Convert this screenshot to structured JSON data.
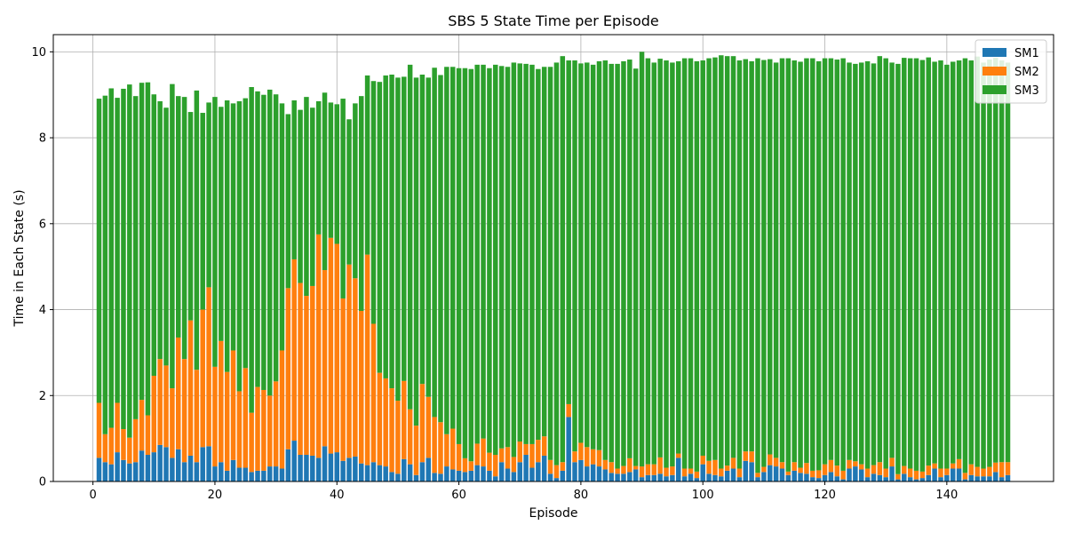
{
  "chart_data": {
    "type": "bar",
    "stacked": true,
    "title": "SBS 5 State Time per Episode",
    "xlabel": "Episode",
    "ylabel": "Time in Each State (s)",
    "xlim": [
      -6.5,
      157.5
    ],
    "ylim": [
      0,
      10.4
    ],
    "xticks": [
      0,
      20,
      40,
      60,
      80,
      100,
      120,
      140
    ],
    "yticks": [
      0,
      2,
      4,
      6,
      8,
      10
    ],
    "grid": true,
    "legend": "top-right",
    "x": [
      1,
      2,
      3,
      4,
      5,
      6,
      7,
      8,
      9,
      10,
      11,
      12,
      13,
      14,
      15,
      16,
      17,
      18,
      19,
      20,
      21,
      22,
      23,
      24,
      25,
      26,
      27,
      28,
      29,
      30,
      31,
      32,
      33,
      34,
      35,
      36,
      37,
      38,
      39,
      40,
      41,
      42,
      43,
      44,
      45,
      46,
      47,
      48,
      49,
      50,
      51,
      52,
      53,
      54,
      55,
      56,
      57,
      58,
      59,
      60,
      61,
      62,
      63,
      64,
      65,
      66,
      67,
      68,
      69,
      70,
      71,
      72,
      73,
      74,
      75,
      76,
      77,
      78,
      79,
      80,
      81,
      82,
      83,
      84,
      85,
      86,
      87,
      88,
      89,
      90,
      91,
      92,
      93,
      94,
      95,
      96,
      97,
      98,
      99,
      100,
      101,
      102,
      103,
      104,
      105,
      106,
      107,
      108,
      109,
      110,
      111,
      112,
      113,
      114,
      115,
      116,
      117,
      118,
      119,
      120,
      121,
      122,
      123,
      124,
      125,
      126,
      127,
      128,
      129,
      130,
      131,
      132,
      133,
      134,
      135,
      136,
      137,
      138,
      139,
      140,
      141,
      142,
      143,
      144,
      145,
      146,
      147,
      148,
      149,
      150
    ],
    "series": [
      {
        "name": "SM1",
        "color": "#1f77b4",
        "values": [
          0.55,
          0.45,
          0.4,
          0.68,
          0.5,
          0.42,
          0.45,
          0.72,
          0.62,
          0.68,
          0.85,
          0.8,
          0.55,
          0.75,
          0.45,
          0.6,
          0.45,
          0.8,
          0.82,
          0.35,
          0.45,
          0.25,
          0.5,
          0.32,
          0.32,
          0.22,
          0.25,
          0.25,
          0.35,
          0.35,
          0.3,
          0.75,
          0.95,
          0.62,
          0.62,
          0.6,
          0.55,
          0.82,
          0.65,
          0.68,
          0.48,
          0.55,
          0.58,
          0.42,
          0.38,
          0.45,
          0.38,
          0.35,
          0.22,
          0.18,
          0.52,
          0.4,
          0.15,
          0.45,
          0.55,
          0.2,
          0.18,
          0.35,
          0.28,
          0.25,
          0.22,
          0.25,
          0.38,
          0.35,
          0.25,
          0.12,
          0.45,
          0.3,
          0.22,
          0.45,
          0.62,
          0.32,
          0.45,
          0.6,
          0.18,
          0.08,
          0.25,
          1.5,
          0.45,
          0.5,
          0.35,
          0.4,
          0.35,
          0.28,
          0.2,
          0.18,
          0.18,
          0.22,
          0.28,
          0.1,
          0.15,
          0.15,
          0.18,
          0.12,
          0.15,
          0.55,
          0.12,
          0.18,
          0.08,
          0.4,
          0.18,
          0.15,
          0.12,
          0.25,
          0.3,
          0.1,
          0.48,
          0.45,
          0.1,
          0.22,
          0.38,
          0.35,
          0.3,
          0.15,
          0.25,
          0.2,
          0.18,
          0.1,
          0.08,
          0.15,
          0.22,
          0.12,
          0.05,
          0.3,
          0.35,
          0.28,
          0.1,
          0.18,
          0.15,
          0.1,
          0.35,
          0.05,
          0.18,
          0.1,
          0.05,
          0.08,
          0.15,
          0.3,
          0.1,
          0.15,
          0.3,
          0.3,
          0.05,
          0.15,
          0.12,
          0.12,
          0.12,
          0.22,
          0.1,
          0.15
        ]
      },
      {
        "name": "SM2",
        "color": "#ff7f0e",
        "values": [
          1.28,
          0.65,
          0.85,
          1.15,
          0.72,
          0.6,
          1.0,
          1.18,
          0.92,
          1.78,
          2.0,
          1.9,
          1.62,
          2.6,
          2.4,
          3.15,
          2.15,
          3.2,
          3.7,
          2.32,
          2.82,
          2.3,
          2.55,
          1.78,
          2.32,
          1.38,
          1.95,
          1.88,
          1.65,
          1.98,
          2.75,
          3.75,
          4.22,
          4.0,
          3.7,
          3.95,
          5.2,
          4.1,
          5.02,
          4.85,
          3.78,
          4.5,
          4.15,
          3.55,
          4.9,
          3.22,
          2.15,
          2.05,
          1.95,
          1.7,
          1.82,
          1.28,
          1.15,
          1.82,
          1.42,
          1.3,
          1.2,
          0.75,
          0.95,
          0.62,
          0.32,
          0.22,
          0.5,
          0.65,
          0.42,
          0.5,
          0.32,
          0.5,
          0.35,
          0.48,
          0.25,
          0.55,
          0.52,
          0.45,
          0.32,
          0.3,
          0.2,
          0.3,
          0.25,
          0.4,
          0.45,
          0.35,
          0.38,
          0.22,
          0.25,
          0.12,
          0.18,
          0.32,
          0.08,
          0.25,
          0.25,
          0.25,
          0.38,
          0.2,
          0.2,
          0.1,
          0.18,
          0.12,
          0.15,
          0.2,
          0.3,
          0.35,
          0.18,
          0.12,
          0.25,
          0.2,
          0.22,
          0.25,
          0.1,
          0.12,
          0.25,
          0.2,
          0.15,
          0.08,
          0.2,
          0.12,
          0.25,
          0.15,
          0.18,
          0.25,
          0.28,
          0.25,
          0.2,
          0.2,
          0.12,
          0.12,
          0.2,
          0.2,
          0.3,
          0.2,
          0.2,
          0.12,
          0.18,
          0.2,
          0.2,
          0.15,
          0.22,
          0.12,
          0.2,
          0.15,
          0.12,
          0.22,
          0.15,
          0.25,
          0.22,
          0.18,
          0.22,
          0.22,
          0.35,
          0.3
        ]
      },
      {
        "name": "SM3",
        "color": "#2ca02c",
        "values": [
          7.08,
          7.88,
          7.9,
          7.1,
          7.92,
          8.22,
          7.52,
          7.38,
          7.75,
          6.55,
          6.0,
          6.0,
          7.08,
          5.62,
          6.1,
          4.85,
          6.5,
          4.58,
          4.3,
          6.28,
          5.45,
          6.32,
          5.75,
          6.75,
          6.28,
          7.58,
          6.88,
          6.87,
          7.12,
          6.68,
          5.75,
          4.05,
          3.7,
          4.03,
          4.63,
          4.15,
          3.1,
          4.13,
          3.15,
          3.25,
          4.65,
          3.38,
          4.07,
          5.0,
          4.17,
          5.65,
          6.77,
          7.05,
          7.3,
          7.52,
          7.08,
          8.02,
          8.1,
          7.2,
          7.43,
          8.13,
          8.08,
          8.55,
          8.42,
          8.75,
          9.08,
          9.13,
          8.82,
          8.7,
          8.95,
          9.08,
          8.9,
          8.85,
          9.18,
          8.8,
          8.85,
          8.83,
          8.63,
          8.6,
          9.15,
          9.37,
          9.45,
          8.0,
          9.1,
          8.83,
          8.95,
          8.95,
          9.05,
          9.3,
          9.27,
          9.42,
          9.42,
          9.28,
          9.25,
          9.65,
          9.45,
          9.35,
          9.28,
          9.48,
          9.4,
          9.13,
          9.55,
          9.55,
          9.55,
          9.2,
          9.37,
          9.37,
          9.62,
          9.53,
          9.35,
          9.5,
          9.13,
          9.08,
          9.65,
          9.47,
          9.2,
          9.2,
          9.4,
          9.62,
          9.35,
          9.45,
          9.42,
          9.6,
          9.52,
          9.45,
          9.35,
          9.45,
          9.6,
          9.25,
          9.25,
          9.35,
          9.48,
          9.35,
          9.45,
          9.55,
          9.2,
          9.55,
          9.5,
          9.55,
          9.6,
          9.58,
          9.5,
          9.35,
          9.5,
          9.4,
          9.35,
          9.28,
          9.65,
          9.4,
          9.55,
          9.45,
          9.48,
          9.42,
          9.35,
          9.3
        ]
      }
    ]
  }
}
